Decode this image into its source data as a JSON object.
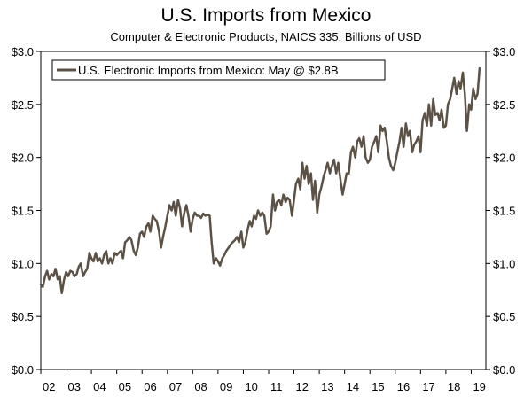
{
  "chart_data": {
    "type": "line",
    "title": "U.S. Imports from Mexico",
    "subtitle": "Computer & Electronic Products, NAICS 335, Billions of USD",
    "xlabel": "",
    "ylabel": "",
    "legend": "top-left",
    "grid": false,
    "xlim": [
      2002.0,
      2019.58
    ],
    "ylim": [
      0,
      3.0
    ],
    "y_ticks": [
      0,
      0.5,
      1.0,
      1.5,
      2.0,
      2.5,
      3.0
    ],
    "y_tick_labels": [
      "$0.0",
      "$0.5",
      "$1.0",
      "$1.5",
      "$2.0",
      "$2.5",
      "$3.0"
    ],
    "x_ticks": [
      2002,
      2003,
      2004,
      2005,
      2006,
      2007,
      2008,
      2009,
      2010,
      2011,
      2012,
      2013,
      2014,
      2015,
      2016,
      2017,
      2018,
      2019
    ],
    "x_tick_labels": [
      "02",
      "03",
      "04",
      "05",
      "06",
      "07",
      "08",
      "09",
      "10",
      "11",
      "12",
      "13",
      "14",
      "15",
      "16",
      "17",
      "18",
      "19"
    ],
    "series": [
      {
        "name": "U.S. Electronic Imports from Mexico: May @ $2.8B",
        "color": "#5c5147",
        "points": [
          [
            2002.0,
            0.8
          ],
          [
            2002.08,
            0.78
          ],
          [
            2002.17,
            0.88
          ],
          [
            2002.25,
            0.93
          ],
          [
            2002.33,
            0.85
          ],
          [
            2002.42,
            0.9
          ],
          [
            2002.5,
            0.88
          ],
          [
            2002.58,
            0.95
          ],
          [
            2002.67,
            0.85
          ],
          [
            2002.75,
            0.88
          ],
          [
            2002.83,
            0.72
          ],
          [
            2002.92,
            0.85
          ],
          [
            2003.0,
            0.92
          ],
          [
            2003.08,
            0.88
          ],
          [
            2003.17,
            0.93
          ],
          [
            2003.25,
            0.92
          ],
          [
            2003.33,
            0.88
          ],
          [
            2003.42,
            0.9
          ],
          [
            2003.5,
            0.97
          ],
          [
            2003.58,
            1.0
          ],
          [
            2003.67,
            0.88
          ],
          [
            2003.75,
            0.92
          ],
          [
            2003.83,
            0.95
          ],
          [
            2003.92,
            1.1
          ],
          [
            2004.0,
            1.05
          ],
          [
            2004.08,
            1.02
          ],
          [
            2004.17,
            1.1
          ],
          [
            2004.25,
            1.02
          ],
          [
            2004.33,
            1.05
          ],
          [
            2004.42,
            1.0
          ],
          [
            2004.5,
            1.08
          ],
          [
            2004.58,
            1.12
          ],
          [
            2004.67,
            1.0
          ],
          [
            2004.75,
            1.05
          ],
          [
            2004.83,
            1.0
          ],
          [
            2004.92,
            1.1
          ],
          [
            2005.0,
            1.08
          ],
          [
            2005.08,
            1.1
          ],
          [
            2005.17,
            1.12
          ],
          [
            2005.25,
            1.05
          ],
          [
            2005.33,
            1.2
          ],
          [
            2005.42,
            1.22
          ],
          [
            2005.5,
            1.25
          ],
          [
            2005.58,
            1.22
          ],
          [
            2005.67,
            1.12
          ],
          [
            2005.75,
            1.08
          ],
          [
            2005.83,
            1.15
          ],
          [
            2005.92,
            1.28
          ],
          [
            2006.0,
            1.3
          ],
          [
            2006.08,
            1.25
          ],
          [
            2006.17,
            1.35
          ],
          [
            2006.25,
            1.38
          ],
          [
            2006.33,
            1.3
          ],
          [
            2006.42,
            1.45
          ],
          [
            2006.5,
            1.42
          ],
          [
            2006.58,
            1.4
          ],
          [
            2006.67,
            1.3
          ],
          [
            2006.75,
            1.15
          ],
          [
            2006.83,
            1.25
          ],
          [
            2006.92,
            1.35
          ],
          [
            2007.0,
            1.45
          ],
          [
            2007.08,
            1.55
          ],
          [
            2007.17,
            1.5
          ],
          [
            2007.25,
            1.58
          ],
          [
            2007.33,
            1.45
          ],
          [
            2007.42,
            1.6
          ],
          [
            2007.5,
            1.52
          ],
          [
            2007.58,
            1.35
          ],
          [
            2007.67,
            1.48
          ],
          [
            2007.75,
            1.55
          ],
          [
            2007.83,
            1.45
          ],
          [
            2007.92,
            1.3
          ],
          [
            2008.0,
            1.42
          ],
          [
            2008.08,
            1.48
          ],
          [
            2008.17,
            1.45
          ],
          [
            2008.25,
            1.45
          ],
          [
            2008.33,
            1.43
          ],
          [
            2008.42,
            1.47
          ],
          [
            2008.5,
            1.45
          ],
          [
            2008.58,
            1.46
          ],
          [
            2008.67,
            1.45
          ],
          [
            2008.75,
            1.2
          ],
          [
            2008.83,
            1.0
          ],
          [
            2008.92,
            1.05
          ],
          [
            2009.0,
            1.02
          ],
          [
            2009.08,
            0.98
          ],
          [
            2009.17,
            1.05
          ],
          [
            2009.25,
            1.08
          ],
          [
            2009.33,
            1.12
          ],
          [
            2009.42,
            1.15
          ],
          [
            2009.5,
            1.18
          ],
          [
            2009.58,
            1.2
          ],
          [
            2009.67,
            1.22
          ],
          [
            2009.75,
            1.25
          ],
          [
            2009.83,
            1.2
          ],
          [
            2009.92,
            1.3
          ],
          [
            2010.0,
            1.15
          ],
          [
            2010.08,
            1.2
          ],
          [
            2010.17,
            1.32
          ],
          [
            2010.25,
            1.4
          ],
          [
            2010.33,
            1.35
          ],
          [
            2010.42,
            1.45
          ],
          [
            2010.5,
            1.42
          ],
          [
            2010.58,
            1.5
          ],
          [
            2010.67,
            1.45
          ],
          [
            2010.75,
            1.48
          ],
          [
            2010.83,
            1.45
          ],
          [
            2010.92,
            1.28
          ],
          [
            2011.0,
            1.3
          ],
          [
            2011.08,
            1.35
          ],
          [
            2011.17,
            1.65
          ],
          [
            2011.25,
            1.5
          ],
          [
            2011.33,
            1.58
          ],
          [
            2011.42,
            1.6
          ],
          [
            2011.5,
            1.55
          ],
          [
            2011.58,
            1.65
          ],
          [
            2011.67,
            1.58
          ],
          [
            2011.75,
            1.62
          ],
          [
            2011.83,
            1.6
          ],
          [
            2011.92,
            1.45
          ],
          [
            2012.0,
            1.6
          ],
          [
            2012.08,
            1.75
          ],
          [
            2012.17,
            1.8
          ],
          [
            2012.25,
            1.7
          ],
          [
            2012.33,
            1.95
          ],
          [
            2012.42,
            1.8
          ],
          [
            2012.5,
            1.92
          ],
          [
            2012.58,
            1.75
          ],
          [
            2012.67,
            1.85
          ],
          [
            2012.75,
            1.6
          ],
          [
            2012.83,
            1.78
          ],
          [
            2012.92,
            1.48
          ],
          [
            2013.0,
            1.65
          ],
          [
            2013.08,
            1.72
          ],
          [
            2013.17,
            1.82
          ],
          [
            2013.25,
            1.88
          ],
          [
            2013.33,
            1.95
          ],
          [
            2013.42,
            1.85
          ],
          [
            2013.5,
            1.92
          ],
          [
            2013.58,
            1.98
          ],
          [
            2013.67,
            1.85
          ],
          [
            2013.75,
            1.95
          ],
          [
            2013.83,
            1.8
          ],
          [
            2013.92,
            1.65
          ],
          [
            2014.0,
            1.75
          ],
          [
            2014.08,
            1.85
          ],
          [
            2014.17,
            1.85
          ],
          [
            2014.25,
            2.05
          ],
          [
            2014.33,
            2.1
          ],
          [
            2014.42,
            2.0
          ],
          [
            2014.5,
            2.15
          ],
          [
            2014.58,
            2.18
          ],
          [
            2014.67,
            2.1
          ],
          [
            2014.75,
            2.2
          ],
          [
            2014.83,
            2.0
          ],
          [
            2014.92,
            1.95
          ],
          [
            2015.0,
            1.98
          ],
          [
            2015.08,
            2.1
          ],
          [
            2015.17,
            2.15
          ],
          [
            2015.25,
            2.2
          ],
          [
            2015.33,
            2.05
          ],
          [
            2015.42,
            2.3
          ],
          [
            2015.5,
            2.25
          ],
          [
            2015.58,
            2.28
          ],
          [
            2015.67,
            2.15
          ],
          [
            2015.75,
            2.0
          ],
          [
            2015.83,
            1.92
          ],
          [
            2015.92,
            1.88
          ],
          [
            2016.0,
            1.95
          ],
          [
            2016.08,
            2.05
          ],
          [
            2016.17,
            2.15
          ],
          [
            2016.25,
            2.28
          ],
          [
            2016.33,
            2.1
          ],
          [
            2016.42,
            2.32
          ],
          [
            2016.5,
            2.2
          ],
          [
            2016.58,
            2.25
          ],
          [
            2016.67,
            2.05
          ],
          [
            2016.75,
            2.12
          ],
          [
            2016.83,
            2.15
          ],
          [
            2016.92,
            2.2
          ],
          [
            2017.0,
            2.05
          ],
          [
            2017.08,
            2.35
          ],
          [
            2017.17,
            2.42
          ],
          [
            2017.25,
            2.3
          ],
          [
            2017.33,
            2.5
          ],
          [
            2017.42,
            2.3
          ],
          [
            2017.5,
            2.55
          ],
          [
            2017.58,
            2.4
          ],
          [
            2017.67,
            2.42
          ],
          [
            2017.75,
            2.35
          ],
          [
            2017.83,
            2.45
          ],
          [
            2017.92,
            2.28
          ],
          [
            2018.0,
            2.3
          ],
          [
            2018.08,
            2.5
          ],
          [
            2018.17,
            2.55
          ],
          [
            2018.25,
            2.65
          ],
          [
            2018.33,
            2.75
          ],
          [
            2018.42,
            2.6
          ],
          [
            2018.5,
            2.72
          ],
          [
            2018.58,
            2.65
          ],
          [
            2018.67,
            2.8
          ],
          [
            2018.75,
            2.6
          ],
          [
            2018.83,
            2.25
          ],
          [
            2018.92,
            2.5
          ],
          [
            2019.0,
            2.45
          ],
          [
            2019.08,
            2.65
          ],
          [
            2019.17,
            2.55
          ],
          [
            2019.25,
            2.6
          ],
          [
            2019.33,
            2.84
          ]
        ]
      }
    ]
  }
}
